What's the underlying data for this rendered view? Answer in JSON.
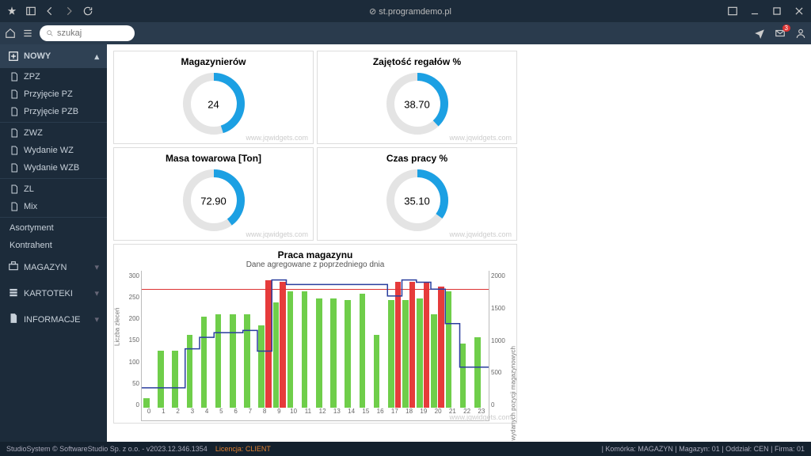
{
  "titlebar": {
    "url_prefix": "⊘",
    "url": "st.programdemo.pl"
  },
  "search": {
    "placeholder": "szukaj"
  },
  "notifications": {
    "count": "3"
  },
  "sidebar": {
    "new_label": "NOWY",
    "groups": [
      {
        "items": [
          "ZPZ",
          "Przyjęcie PZ",
          "Przyjęcie PZB"
        ]
      },
      {
        "items": [
          "ZWZ",
          "Wydanie WZ",
          "Wydanie WZB"
        ]
      },
      {
        "items": [
          "ZL",
          "Mix"
        ]
      },
      {
        "items": [
          "Asortyment",
          "Kontrahent"
        ]
      }
    ],
    "cats": [
      "MAGAZYN",
      "KARTOTEKI",
      "INFORMACJE"
    ]
  },
  "gauges": [
    {
      "title": "Magazynierów",
      "value": "24",
      "pct": 45
    },
    {
      "title": "Zajętość regałów %",
      "value": "38.70",
      "pct": 38
    },
    {
      "title": "Masa towarowa [Ton]",
      "value": "72.90",
      "pct": 40
    },
    {
      "title": "Czas pracy %",
      "value": "35.10",
      "pct": 35
    }
  ],
  "gauge_colors": {
    "ring": "#e4e4e4",
    "arc": "#1ca0e3",
    "bg": "#ffffff"
  },
  "watermark": "www.jqwidgets.com",
  "chart": {
    "title": "Praca magazynu",
    "subtitle": "Dane agregowane z poprzedniego dnia",
    "y1": {
      "max": 300,
      "ticks": [
        "300",
        "250",
        "200",
        "150",
        "100",
        "50",
        "0"
      ],
      "label": "Liczba zleceń"
    },
    "y2": {
      "max": 2000,
      "ticks": [
        "2000",
        "1500",
        "1000",
        "500",
        "0"
      ],
      "label": "Liczba wydanych pozycji magazynowych"
    },
    "x": [
      "0",
      "1",
      "2",
      "3",
      "4",
      "5",
      "6",
      "7",
      "8",
      "9",
      "10",
      "11",
      "12",
      "13",
      "14",
      "15",
      "16",
      "17",
      "18",
      "19",
      "20",
      "21",
      "22",
      "23"
    ],
    "green": [
      20,
      125,
      125,
      160,
      200,
      205,
      205,
      205,
      180,
      230,
      255,
      255,
      240,
      240,
      235,
      250,
      160,
      235,
      235,
      240,
      205,
      255,
      140,
      155
    ],
    "red": [
      0,
      0,
      0,
      0,
      0,
      0,
      0,
      0,
      280,
      275,
      0,
      0,
      0,
      0,
      0,
      0,
      0,
      275,
      275,
      275,
      265,
      0,
      0,
      0
    ],
    "blue": [
      45,
      45,
      45,
      130,
      155,
      165,
      165,
      170,
      125,
      280,
      270,
      270,
      270,
      270,
      270,
      270,
      270,
      245,
      280,
      275,
      260,
      185,
      90,
      90
    ],
    "redline": 260,
    "colors": {
      "green": "#6fce4a",
      "red": "#e63b3b",
      "blue": "#2a3e9e",
      "redline": "#d33333",
      "grid": "#dddddd"
    }
  },
  "statusbar": {
    "left": "StudioSystem © SoftwareStudio Sp. z o.o. - v2023.12.346.1354",
    "lic": "Licencja: CLIENT",
    "right": "| Komórka: MAGAZYN | Magazyn: 01 | Oddział: CEN | Firma: 01"
  }
}
